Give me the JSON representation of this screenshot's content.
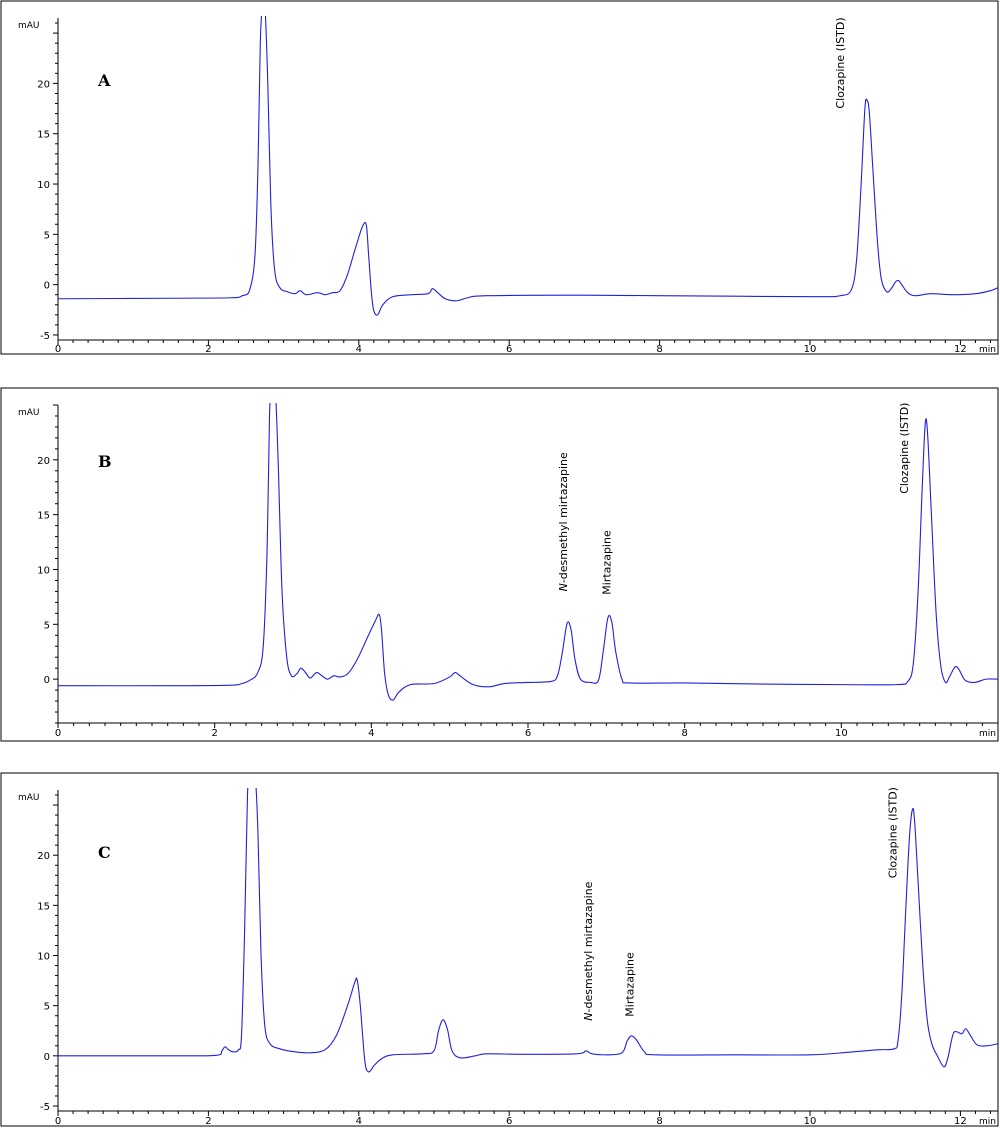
{
  "chart_data": [
    {
      "type": "line",
      "panel_label": "A",
      "ylabel": "mAU",
      "xlabel": "min",
      "xlim": [
        0,
        12.5
      ],
      "ylim": [
        -5.5,
        26.5
      ],
      "x_ticks": [
        0,
        2,
        4,
        6,
        8,
        10,
        12
      ],
      "y_ticks": [
        -5,
        0,
        5,
        10,
        15,
        20
      ],
      "annotations": [
        {
          "text": "Clozapine (ISTD)",
          "x": 10.45,
          "y": 17.5
        }
      ],
      "series": [
        {
          "points": [
            [
              0,
              -1.4
            ],
            [
              1.5,
              -1.35
            ],
            [
              2.3,
              -1.3
            ],
            [
              2.45,
              -1.1
            ],
            [
              2.55,
              -0.5
            ],
            [
              2.62,
              3
            ],
            [
              2.66,
              12
            ],
            [
              2.69,
              24
            ],
            [
              2.72,
              28
            ],
            [
              2.75,
              28
            ],
            [
              2.79,
              20
            ],
            [
              2.83,
              8
            ],
            [
              2.88,
              1.5
            ],
            [
              2.95,
              -0.3
            ],
            [
              3.05,
              -0.7
            ],
            [
              3.15,
              -0.9
            ],
            [
              3.22,
              -0.6
            ],
            [
              3.3,
              -1.0
            ],
            [
              3.45,
              -0.8
            ],
            [
              3.55,
              -1.0
            ],
            [
              3.65,
              -0.8
            ],
            [
              3.75,
              -0.6
            ],
            [
              3.85,
              1.0
            ],
            [
              3.95,
              3.5
            ],
            [
              4.05,
              5.8
            ],
            [
              4.1,
              5.9
            ],
            [
              4.13,
              3.0
            ],
            [
              4.17,
              -1.0
            ],
            [
              4.2,
              -2.6
            ],
            [
              4.25,
              -3.0
            ],
            [
              4.32,
              -2.0
            ],
            [
              4.45,
              -1.2
            ],
            [
              4.7,
              -1.0
            ],
            [
              4.92,
              -0.9
            ],
            [
              4.98,
              -0.4
            ],
            [
              5.05,
              -0.8
            ],
            [
              5.15,
              -1.4
            ],
            [
              5.3,
              -1.6
            ],
            [
              5.45,
              -1.3
            ],
            [
              5.7,
              -1.1
            ],
            [
              7,
              -1.05
            ],
            [
              9,
              -1.15
            ],
            [
              10.1,
              -1.2
            ],
            [
              10.4,
              -1.1
            ],
            [
              10.55,
              -0.5
            ],
            [
              10.62,
              2.5
            ],
            [
              10.68,
              10
            ],
            [
              10.73,
              17.5
            ],
            [
              10.76,
              18.3
            ],
            [
              10.79,
              17
            ],
            [
              10.84,
              11
            ],
            [
              10.9,
              4
            ],
            [
              10.95,
              0.5
            ],
            [
              11.02,
              -0.7
            ],
            [
              11.08,
              -0.4
            ],
            [
              11.14,
              0.3
            ],
            [
              11.18,
              0.4
            ],
            [
              11.22,
              0
            ],
            [
              11.3,
              -0.8
            ],
            [
              11.4,
              -1.1
            ],
            [
              11.6,
              -0.9
            ],
            [
              11.9,
              -1.0
            ],
            [
              12.2,
              -0.9
            ],
            [
              12.4,
              -0.6
            ],
            [
              12.5,
              -0.3
            ]
          ]
        }
      ]
    },
    {
      "type": "line",
      "panel_label": "B",
      "ylabel": "mAU",
      "xlabel": "min",
      "xlim": [
        0,
        12
      ],
      "ylim": [
        -4,
        25
      ],
      "x_ticks": [
        0,
        2,
        4,
        6,
        8,
        10
      ],
      "y_ticks": [
        0,
        5,
        10,
        15,
        20
      ],
      "annotations": [
        {
          "text": "N-desmethyl mirtazapine",
          "x": 6.5,
          "y": 8.0
        },
        {
          "text": "Mirtazapine",
          "x": 7.05,
          "y": 7.7
        },
        {
          "text": "Clozapine (ISTD)",
          "x": 10.85,
          "y": 16.9
        }
      ],
      "series": [
        {
          "points": [
            [
              0,
              -0.6
            ],
            [
              1.5,
              -0.6
            ],
            [
              2.2,
              -0.55
            ],
            [
              2.35,
              -0.4
            ],
            [
              2.45,
              -0.1
            ],
            [
              2.55,
              0.6
            ],
            [
              2.62,
              3
            ],
            [
              2.67,
              12
            ],
            [
              2.7,
              24
            ],
            [
              2.73,
              27
            ],
            [
              2.77,
              27
            ],
            [
              2.81,
              20
            ],
            [
              2.86,
              8
            ],
            [
              2.92,
              2
            ],
            [
              2.98,
              0.3
            ],
            [
              3.05,
              0.5
            ],
            [
              3.1,
              1.0
            ],
            [
              3.16,
              0.6
            ],
            [
              3.22,
              0.1
            ],
            [
              3.3,
              0.6
            ],
            [
              3.37,
              0.3
            ],
            [
              3.44,
              0
            ],
            [
              3.52,
              0.3
            ],
            [
              3.6,
              0.2
            ],
            [
              3.7,
              0.5
            ],
            [
              3.82,
              1.8
            ],
            [
              3.95,
              3.8
            ],
            [
              4.05,
              5.3
            ],
            [
              4.1,
              5.9
            ],
            [
              4.13,
              4.5
            ],
            [
              4.17,
              0.5
            ],
            [
              4.22,
              -1.5
            ],
            [
              4.28,
              -1.9
            ],
            [
              4.35,
              -1.2
            ],
            [
              4.5,
              -0.5
            ],
            [
              4.8,
              -0.4
            ],
            [
              5.0,
              0.2
            ],
            [
              5.07,
              0.6
            ],
            [
              5.15,
              0.2
            ],
            [
              5.3,
              -0.5
            ],
            [
              5.5,
              -0.7
            ],
            [
              5.7,
              -0.4
            ],
            [
              6.0,
              -0.3
            ],
            [
              6.3,
              -0.2
            ],
            [
              6.38,
              0.4
            ],
            [
              6.44,
              2.5
            ],
            [
              6.5,
              5.1
            ],
            [
              6.55,
              4.5
            ],
            [
              6.6,
              1.8
            ],
            [
              6.67,
              0
            ],
            [
              6.8,
              -0.3
            ],
            [
              6.9,
              -0.1
            ],
            [
              6.96,
              2.5
            ],
            [
              7.02,
              5.6
            ],
            [
              7.07,
              5.2
            ],
            [
              7.12,
              2.5
            ],
            [
              7.2,
              0
            ],
            [
              7.3,
              -0.35
            ],
            [
              8,
              -0.35
            ],
            [
              9,
              -0.45
            ],
            [
              10,
              -0.5
            ],
            [
              10.7,
              -0.5
            ],
            [
              10.85,
              -0.2
            ],
            [
              10.92,
              1.5
            ],
            [
              10.98,
              8
            ],
            [
              11.03,
              17
            ],
            [
              11.07,
              23.2
            ],
            [
              11.1,
              22.5
            ],
            [
              11.15,
              15
            ],
            [
              11.21,
              6
            ],
            [
              11.27,
              1.2
            ],
            [
              11.33,
              -0.3
            ],
            [
              11.38,
              0.2
            ],
            [
              11.45,
              1.1
            ],
            [
              11.5,
              0.9
            ],
            [
              11.58,
              -0.1
            ],
            [
              11.7,
              -0.3
            ],
            [
              11.85,
              0
            ],
            [
              12,
              0
            ]
          ]
        }
      ]
    },
    {
      "type": "line",
      "panel_label": "C",
      "ylabel": "mAU",
      "xlabel": "min",
      "xlim": [
        0,
        12.5
      ],
      "ylim": [
        -5.5,
        26.5
      ],
      "x_ticks": [
        0,
        2,
        4,
        6,
        8,
        10,
        12
      ],
      "y_ticks": [
        -5,
        0,
        5,
        10,
        15,
        20
      ],
      "annotations": [
        {
          "text": "N-desmethyl mirtazapine",
          "x": 7.1,
          "y": 3.5
        },
        {
          "text": "Mirtazapine",
          "x": 7.65,
          "y": 3.9
        },
        {
          "text": "Clozapine (ISTD)",
          "x": 11.15,
          "y": 17.7
        }
      ],
      "series": [
        {
          "points": [
            [
              0,
              0
            ],
            [
              1.5,
              0
            ],
            [
              2.1,
              0.05
            ],
            [
              2.18,
              0.5
            ],
            [
              2.22,
              0.9
            ],
            [
              2.27,
              0.6
            ],
            [
              2.33,
              0.4
            ],
            [
              2.4,
              0.6
            ],
            [
              2.44,
              2
            ],
            [
              2.48,
              12
            ],
            [
              2.52,
              26
            ],
            [
              2.55,
              28
            ],
            [
              2.62,
              28
            ],
            [
              2.66,
              22
            ],
            [
              2.7,
              10
            ],
            [
              2.75,
              3
            ],
            [
              2.82,
              1.2
            ],
            [
              2.95,
              0.7
            ],
            [
              3.15,
              0.4
            ],
            [
              3.35,
              0.3
            ],
            [
              3.55,
              0.6
            ],
            [
              3.7,
              2.0
            ],
            [
              3.85,
              5.0
            ],
            [
              3.95,
              7.4
            ],
            [
              3.98,
              7.5
            ],
            [
              4.02,
              5.0
            ],
            [
              4.08,
              -0.5
            ],
            [
              4.13,
              -1.6
            ],
            [
              4.2,
              -1.0
            ],
            [
              4.3,
              -0.3
            ],
            [
              4.45,
              0.1
            ],
            [
              4.85,
              0.2
            ],
            [
              5.0,
              0.5
            ],
            [
              5.06,
              2.5
            ],
            [
              5.12,
              3.6
            ],
            [
              5.18,
              2.6
            ],
            [
              5.24,
              0.5
            ],
            [
              5.35,
              -0.2
            ],
            [
              5.55,
              0
            ],
            [
              5.7,
              0.2
            ],
            [
              6.2,
              0.15
            ],
            [
              6.9,
              0.2
            ],
            [
              7.02,
              0.5
            ],
            [
              7.1,
              0.2
            ],
            [
              7.3,
              0.1
            ],
            [
              7.5,
              0.3
            ],
            [
              7.57,
              1.5
            ],
            [
              7.63,
              2.0
            ],
            [
              7.7,
              1.5
            ],
            [
              7.8,
              0.4
            ],
            [
              7.95,
              0.1
            ],
            [
              9,
              0.1
            ],
            [
              10,
              0.1
            ],
            [
              10.5,
              0.35
            ],
            [
              10.9,
              0.6
            ],
            [
              11.12,
              0.7
            ],
            [
              11.17,
              1.5
            ],
            [
              11.22,
              6
            ],
            [
              11.27,
              14
            ],
            [
              11.32,
              21.5
            ],
            [
              11.36,
              24.5
            ],
            [
              11.39,
              23.5
            ],
            [
              11.44,
              17
            ],
            [
              11.5,
              9
            ],
            [
              11.56,
              3.5
            ],
            [
              11.62,
              1.2
            ],
            [
              11.7,
              -0.1
            ],
            [
              11.78,
              -1.1
            ],
            [
              11.83,
              -0.3
            ],
            [
              11.9,
              2.1
            ],
            [
              11.95,
              2.4
            ],
            [
              12.02,
              2.2
            ],
            [
              12.07,
              2.7
            ],
            [
              12.12,
              2.2
            ],
            [
              12.22,
              1.1
            ],
            [
              12.35,
              1.0
            ],
            [
              12.5,
              1.2
            ]
          ]
        }
      ]
    }
  ]
}
